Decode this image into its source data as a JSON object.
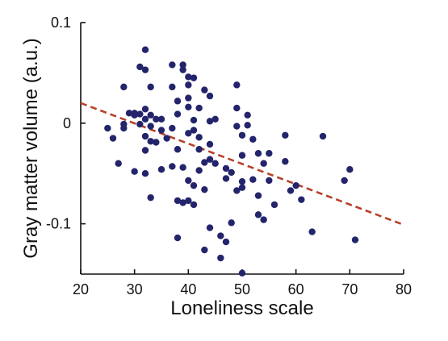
{
  "chart_data": {
    "type": "scatter",
    "title": "",
    "xlabel": "Loneliness scale",
    "ylabel": "Gray matter volume (a.u.)",
    "xlim": [
      20,
      80
    ],
    "ylim": [
      -0.15,
      0.1
    ],
    "x_ticks": [
      20,
      30,
      40,
      50,
      60,
      70,
      80
    ],
    "x_tick_labels": [
      "20",
      "30",
      "40",
      "50",
      "60",
      "70",
      "80"
    ],
    "y_ticks": [
      0.1,
      0,
      -0.1
    ],
    "y_tick_labels": [
      "0.1",
      "0",
      "-0.1"
    ],
    "grid": false,
    "colors": {
      "points": "#23246b",
      "trend": "#b8412a"
    },
    "trend_line": {
      "style": "dashed",
      "x": [
        20,
        80
      ],
      "y": [
        0.02,
        -0.101
      ]
    },
    "points": [
      [
        25,
        -0.005
      ],
      [
        26,
        -0.015
      ],
      [
        27,
        -0.04
      ],
      [
        28,
        0.036
      ],
      [
        28,
        -0.001
      ],
      [
        28,
        -0.005
      ],
      [
        29,
        0.01
      ],
      [
        30,
        0.01
      ],
      [
        30,
        0.008
      ],
      [
        30,
        -0.048
      ],
      [
        31,
        0.056
      ],
      [
        31,
        0.009
      ],
      [
        31,
        -0.001
      ],
      [
        32,
        0.073
      ],
      [
        32,
        0.053
      ],
      [
        32,
        0.014
      ],
      [
        32,
        0.004
      ],
      [
        32,
        -0.013
      ],
      [
        32,
        -0.027
      ],
      [
        32,
        -0.05
      ],
      [
        33,
        0.036
      ],
      [
        33,
        0.008
      ],
      [
        33,
        -0.003
      ],
      [
        33,
        -0.018
      ],
      [
        33,
        -0.074
      ],
      [
        34,
        0.004
      ],
      [
        34,
        -0.019
      ],
      [
        35,
        0.004
      ],
      [
        35,
        -0.007
      ],
      [
        35,
        -0.046
      ],
      [
        36,
        -0.015
      ],
      [
        37,
        0.058
      ],
      [
        37,
        0.036
      ],
      [
        37,
        -0.005
      ],
      [
        37,
        -0.043
      ],
      [
        38,
        0.022
      ],
      [
        38,
        0.009
      ],
      [
        38,
        -0.026
      ],
      [
        38,
        -0.077
      ],
      [
        38,
        -0.114
      ],
      [
        39,
        0.058
      ],
      [
        39,
        0.053
      ],
      [
        39,
        -0.044
      ],
      [
        39,
        -0.079
      ],
      [
        40,
        0.046
      ],
      [
        40,
        0.038
      ],
      [
        40,
        0.025
      ],
      [
        40,
        0.016
      ],
      [
        40,
        -0.01
      ],
      [
        40,
        -0.057
      ],
      [
        40,
        -0.077
      ],
      [
        41,
        0.045
      ],
      [
        41,
        0.003
      ],
      [
        41,
        -0.007
      ],
      [
        41,
        -0.062
      ],
      [
        41,
        -0.081
      ],
      [
        42,
        0.015
      ],
      [
        42,
        -0.014
      ],
      [
        42,
        -0.026
      ],
      [
        42,
        -0.047
      ],
      [
        43,
        0.033
      ],
      [
        43,
        -0.039
      ],
      [
        43,
        -0.066
      ],
      [
        43,
        -0.126
      ],
      [
        44,
        0.027
      ],
      [
        44,
        0.002
      ],
      [
        44,
        -0.021
      ],
      [
        44,
        -0.036
      ],
      [
        44,
        -0.104
      ],
      [
        45,
        0.004
      ],
      [
        45,
        -0.04
      ],
      [
        46,
        -0.112
      ],
      [
        46,
        -0.134
      ],
      [
        47,
        -0.045
      ],
      [
        47,
        -0.055
      ],
      [
        47,
        -0.118
      ],
      [
        48,
        -0.049
      ],
      [
        48,
        -0.099
      ],
      [
        49,
        0.038
      ],
      [
        49,
        0.015
      ],
      [
        49,
        -0.003
      ],
      [
        49,
        -0.067
      ],
      [
        50,
        -0.012
      ],
      [
        50,
        -0.032
      ],
      [
        50,
        -0.058
      ],
      [
        50,
        -0.064
      ],
      [
        50,
        -0.149
      ],
      [
        51,
        0.008
      ],
      [
        51,
        -0.002
      ],
      [
        52,
        -0.016
      ],
      [
        52,
        -0.056
      ],
      [
        53,
        -0.03
      ],
      [
        53,
        -0.072
      ],
      [
        53,
        -0.091
      ],
      [
        54,
        -0.04
      ],
      [
        54,
        -0.096
      ],
      [
        55,
        -0.03
      ],
      [
        55,
        -0.057
      ],
      [
        56,
        -0.081
      ],
      [
        58,
        -0.012
      ],
      [
        58,
        -0.038
      ],
      [
        59,
        -0.067
      ],
      [
        60,
        -0.062
      ],
      [
        61,
        -0.076
      ],
      [
        63,
        -0.108
      ],
      [
        65,
        -0.013
      ],
      [
        69,
        -0.057
      ],
      [
        70,
        -0.046
      ],
      [
        71,
        -0.116
      ]
    ]
  }
}
